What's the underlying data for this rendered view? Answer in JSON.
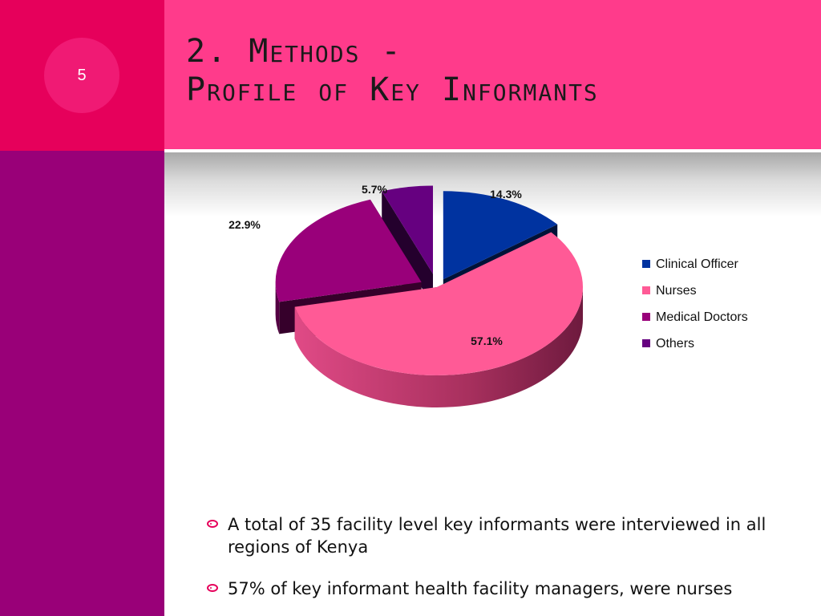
{
  "slide": {
    "number": "5",
    "title_line1": "2. Methods -",
    "title_line2": "Profile of Key Informants"
  },
  "colors": {
    "corner": "#e6005b",
    "left_bar": "#990078",
    "header": "#ff3b8b",
    "number_circle": "#f01a74"
  },
  "chart_data": {
    "type": "pie",
    "style": "3d-exploded",
    "title": "",
    "legend_position": "right",
    "categories": [
      "Clinical Officer",
      "Nurses",
      "Medical Doctors",
      "Others"
    ],
    "values": [
      14.3,
      57.1,
      22.9,
      5.7
    ],
    "labels": [
      "14.3%",
      "57.1%",
      "22.9%",
      "5.7%"
    ],
    "colors": [
      "#0033a0",
      "#ff5a96",
      "#99007a",
      "#660080"
    ]
  },
  "bullets": [
    {
      "text": "A total of 35 facility level key informants were interviewed in all regions of Kenya",
      "icon": "circle-bullet-icon"
    },
    {
      "text": "57% of key informant health facility managers, were nurses",
      "icon": "circle-bullet-icon"
    }
  ]
}
